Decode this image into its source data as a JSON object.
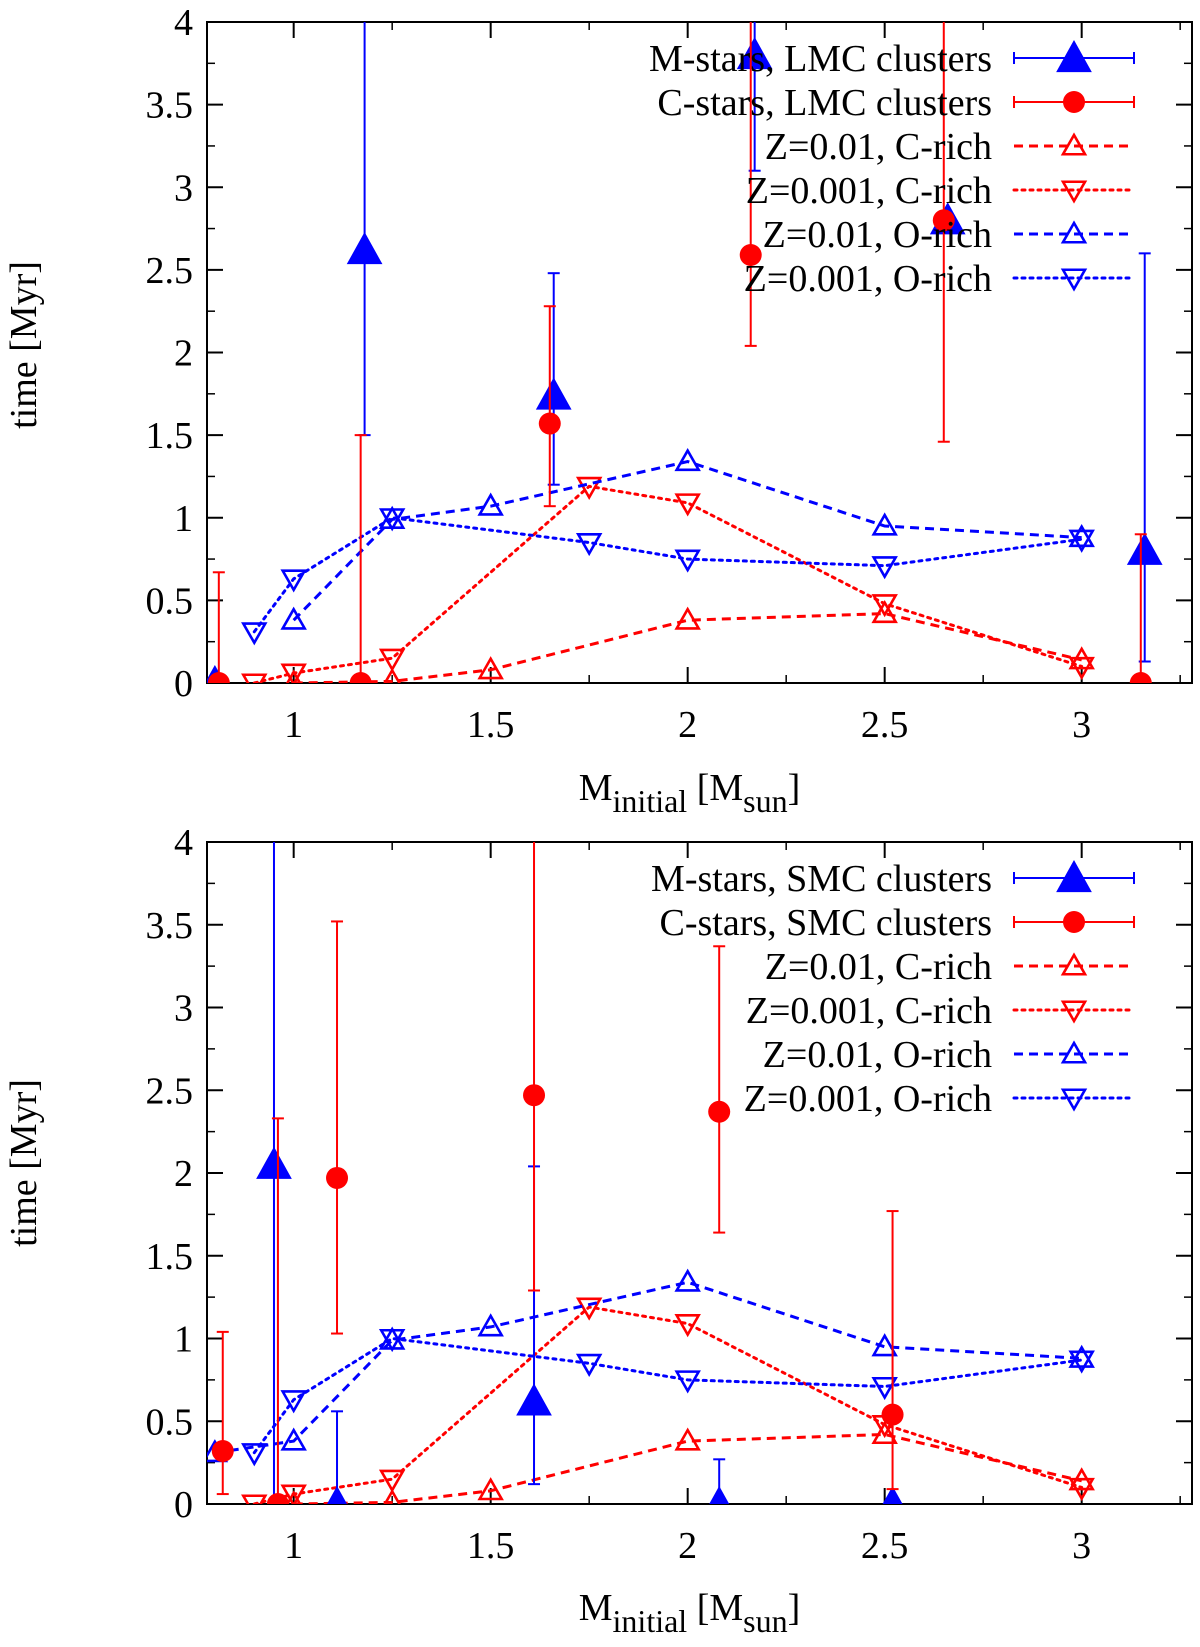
{
  "colors": {
    "blue": "#0000ff",
    "red": "#ff0000",
    "axis": "#000000"
  },
  "chart_data": [
    {
      "type": "line",
      "panel": "top",
      "xlabel": {
        "main": "M",
        "sub": "initial",
        "open": " [M",
        "sub2": "sun",
        "close": "]"
      },
      "ylabel": "time [Myr]",
      "xlim": [
        0.78,
        3.28
      ],
      "ylim": [
        0,
        4
      ],
      "xticks": [
        1,
        1.5,
        2,
        2.5,
        3
      ],
      "xtick_labels": [
        "1",
        "1.5",
        "2",
        "2.5",
        "3"
      ],
      "yticks": [
        0,
        0.5,
        1,
        1.5,
        2,
        2.5,
        3,
        3.5,
        4
      ],
      "ytick_labels": [
        "0",
        "0.5",
        "1",
        "1.5",
        "2",
        "2.5",
        "3",
        "3.5",
        "4"
      ],
      "legend_position": "top-right",
      "legend": [
        "M-stars, LMC clusters",
        "C-stars, LMC clusters",
        "Z=0.01, C-rich",
        "Z=0.001, C-rich",
        "Z=0.01, O-rich",
        "Z=0.001, O-rich"
      ],
      "series": [
        {
          "name": "M-stars, LMC clusters",
          "kind": "errorbar",
          "marker": "filled-triangle",
          "color": "#0000ff",
          "x": [
            0.8,
            1.18,
            1.66,
            2.17,
            2.66,
            3.16
          ],
          "y": [
            0,
            2.62,
            1.74,
            3.8,
            2.8,
            0.8
          ],
          "ylow": [
            0,
            1.5,
            1.2,
            3.1,
            2.8,
            0.13
          ],
          "yhigh": [
            0,
            4.1,
            2.48,
            4.1,
            2.8,
            2.6
          ]
        },
        {
          "name": "C-stars, LMC clusters",
          "kind": "errorbar",
          "marker": "filled-circle",
          "color": "#ff0000",
          "x": [
            0.81,
            1.17,
            1.65,
            2.16,
            2.65,
            3.15
          ],
          "y": [
            0,
            0,
            1.57,
            2.59,
            2.8,
            0
          ],
          "ylow": [
            0,
            0,
            1.07,
            2.04,
            1.46,
            0
          ],
          "yhigh": [
            0.67,
            1.5,
            2.28,
            4.1,
            4.1,
            0.9
          ]
        },
        {
          "name": "Z=0.01, C-rich",
          "kind": "line",
          "dash": "dashed",
          "marker": "open-triangle-up",
          "color": "#ff0000",
          "x": [
            1,
            1.25,
            1.5,
            2,
            2.5,
            3
          ],
          "y": [
            0,
            0.01,
            0.08,
            0.38,
            0.42,
            0.14
          ]
        },
        {
          "name": "Z=0.001, C-rich",
          "kind": "line",
          "dash": "dotted",
          "marker": "open-triangle-down",
          "color": "#ff0000",
          "x": [
            0.9,
            1,
            1.25,
            1.75,
            2,
            2.5,
            3
          ],
          "y": [
            0,
            0.06,
            0.15,
            1.19,
            1.09,
            0.48,
            0.1
          ]
        },
        {
          "name": "Z=0.01, O-rich",
          "kind": "line",
          "dash": "dashed",
          "marker": "open-triangle-up",
          "color": "#0000ff",
          "x": [
            1,
            1.25,
            1.5,
            2,
            2.5,
            3
          ],
          "y": [
            0.38,
            0.99,
            1.07,
            1.34,
            0.95,
            0.88
          ]
        },
        {
          "name": "Z=0.001, O-rich",
          "kind": "line",
          "dash": "dotted",
          "marker": "open-triangle-down",
          "color": "#0000ff",
          "x": [
            0.9,
            1,
            1.25,
            1.75,
            2,
            2.5,
            3
          ],
          "y": [
            0.31,
            0.63,
            1.0,
            0.85,
            0.75,
            0.71,
            0.87
          ]
        }
      ]
    },
    {
      "type": "line",
      "panel": "bottom",
      "xlabel": {
        "main": "M",
        "sub": "initial",
        "open": " [M",
        "sub2": "sun",
        "close": "]"
      },
      "ylabel": "time [Myr]",
      "xlim": [
        0.78,
        3.28
      ],
      "ylim": [
        0,
        4
      ],
      "xticks": [
        1,
        1.5,
        2,
        2.5,
        3
      ],
      "xtick_labels": [
        "1",
        "1.5",
        "2",
        "2.5",
        "3"
      ],
      "yticks": [
        0,
        0.5,
        1,
        1.5,
        2,
        2.5,
        3,
        3.5,
        4
      ],
      "ytick_labels": [
        "0",
        "0.5",
        "1",
        "1.5",
        "2",
        "2.5",
        "3",
        "3.5",
        "4"
      ],
      "legend_position": "top-right",
      "legend": [
        "M-stars, SMC clusters",
        "C-stars, SMC clusters",
        "Z=0.01, C-rich",
        "Z=0.001, C-rich",
        "Z=0.01, O-rich",
        "Z=0.001, O-rich"
      ],
      "series": [
        {
          "name": "M-stars, SMC clusters",
          "kind": "errorbar",
          "marker": "filled-triangle",
          "color": "#0000ff",
          "x": [
            0.95,
            1.11,
            1.61,
            2.08,
            2.52
          ],
          "y": [
            2.05,
            0,
            0.62,
            0,
            0
          ],
          "ylow": [
            0,
            0,
            0.12,
            0,
            0
          ],
          "yhigh": [
            4.1,
            0.56,
            2.04,
            0.27,
            0
          ]
        },
        {
          "name": "C-stars, SMC clusters",
          "kind": "errorbar",
          "marker": "filled-circle",
          "color": "#ff0000",
          "x": [
            0.82,
            0.96,
            1.11,
            1.61,
            2.08,
            2.52
          ],
          "y": [
            0.32,
            0,
            1.97,
            2.47,
            2.37,
            0.54
          ],
          "ylow": [
            0.06,
            0,
            1.03,
            1.29,
            1.64,
            0.09
          ],
          "yhigh": [
            1.04,
            2.33,
            3.52,
            4.1,
            3.37,
            1.77
          ]
        },
        {
          "name": "Z=0.01, C-rich",
          "kind": "line",
          "dash": "dashed",
          "marker": "open-triangle-up",
          "color": "#ff0000",
          "x": [
            1,
            1.25,
            1.5,
            2,
            2.5,
            3
          ],
          "y": [
            0,
            0.01,
            0.08,
            0.38,
            0.42,
            0.14
          ]
        },
        {
          "name": "Z=0.001, C-rich",
          "kind": "line",
          "dash": "dotted",
          "marker": "open-triangle-down",
          "color": "#ff0000",
          "x": [
            0.9,
            1,
            1.25,
            1.75,
            2,
            2.5,
            3
          ],
          "y": [
            0,
            0.06,
            0.15,
            1.19,
            1.09,
            0.48,
            0.1
          ]
        },
        {
          "name": "Z=0.01, O-rich",
          "kind": "line",
          "dash": "dashed",
          "marker": "open-triangle-up",
          "color": "#0000ff",
          "x": [
            0.8,
            1,
            1.25,
            1.5,
            2,
            2.5,
            3
          ],
          "y": [
            0.31,
            0.38,
            0.99,
            1.07,
            1.34,
            0.95,
            0.88
          ]
        },
        {
          "name": "Z=0.001, O-rich",
          "kind": "line",
          "dash": "dotted",
          "marker": "open-triangle-down",
          "color": "#0000ff",
          "x": [
            0.9,
            1,
            1.25,
            1.75,
            2,
            2.5,
            3
          ],
          "y": [
            0.31,
            0.63,
            1.0,
            0.85,
            0.75,
            0.71,
            0.87
          ]
        }
      ]
    }
  ]
}
